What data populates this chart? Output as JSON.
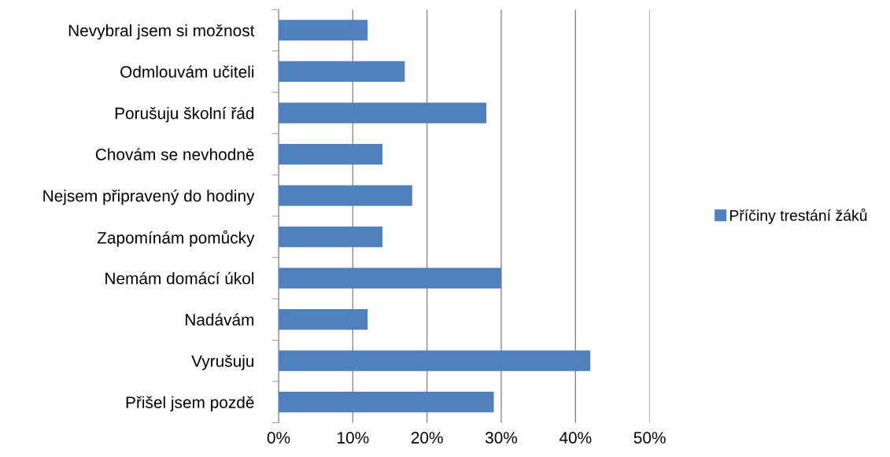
{
  "chart_data": {
    "type": "bar",
    "orientation": "horizontal",
    "categories": [
      "Nevybral jsem si možnost",
      "Odmlouvám učiteli",
      "Porušuju školní řád",
      "Chovám se nevhodně",
      "Nejsem připravený do hodiny",
      "Zapomínám pomůcky",
      "Nemám domácí úkol",
      "Nadávám",
      "Vyrušuju",
      "Přišel jsem pozdě"
    ],
    "series": [
      {
        "name": "Příčiny trestání žáků",
        "color": "#4f81bd",
        "values": [
          12,
          17,
          28,
          14,
          18,
          14,
          30,
          12,
          42,
          29
        ]
      }
    ],
    "xlim": [
      0,
      50
    ],
    "xticks": [
      {
        "value": 0,
        "label": "0%"
      },
      {
        "value": 10,
        "label": "10%"
      },
      {
        "value": 20,
        "label": "20%"
      },
      {
        "value": 30,
        "label": "30%"
      },
      {
        "value": 40,
        "label": "40%"
      },
      {
        "value": 50,
        "label": "50%"
      }
    ],
    "grid": "x",
    "legend": "right"
  }
}
